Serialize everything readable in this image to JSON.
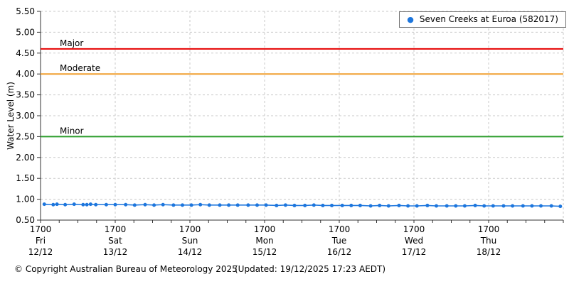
{
  "legend": {
    "label": "Seven Creeks at Euroa (582017)",
    "marker": "dot",
    "marker_color": "#1d76dd"
  },
  "footer": {
    "copyright": "© Copyright Australian Bureau of Meteorology 2025",
    "updated": "(Updated: 19/12/2025 17:23 AEDT)"
  },
  "colors": {
    "series": "#1d76dd",
    "minor_threshold": "#2e9e2e",
    "moderate_threshold": "#f0a030",
    "major_threshold": "#e60000",
    "grid": "#c9c9c9",
    "axis": "#333333",
    "text": "#000000"
  },
  "chart_data": {
    "type": "line",
    "title": "",
    "xlabel": "",
    "ylabel": "Water Level (m)",
    "ylim": [
      0.5,
      5.5
    ],
    "yticks": [
      0.5,
      1.0,
      1.5,
      2.0,
      2.5,
      3.0,
      3.5,
      4.0,
      4.5,
      5.0,
      5.5
    ],
    "grid": true,
    "legend_position": "top-right",
    "x_range_days": 7,
    "minor_ticks_per_day": 4,
    "xticks": [
      {
        "time": "1700",
        "day": "Fri",
        "date": "12/12"
      },
      {
        "time": "1700",
        "day": "Sat",
        "date": "13/12"
      },
      {
        "time": "1700",
        "day": "Sun",
        "date": "14/12"
      },
      {
        "time": "1700",
        "day": "Mon",
        "date": "15/12"
      },
      {
        "time": "1700",
        "day": "Tue",
        "date": "16/12"
      },
      {
        "time": "1700",
        "day": "Wed",
        "date": "17/12"
      },
      {
        "time": "1700",
        "day": "Thu",
        "date": "18/12"
      }
    ],
    "thresholds": [
      {
        "name": "Minor",
        "value": 2.5,
        "color": "#2e9e2e"
      },
      {
        "name": "Moderate",
        "value": 4.0,
        "color": "#f0a030"
      },
      {
        "name": "Major",
        "value": 4.6,
        "color": "#e60000"
      }
    ],
    "series": [
      {
        "name": "Seven Creeks at Euroa (582017)",
        "color": "#1d76dd",
        "marker": "circle",
        "x_days": [
          0.05,
          0.17,
          0.22,
          0.33,
          0.45,
          0.57,
          0.62,
          0.67,
          0.74,
          0.88,
          1.0,
          1.14,
          1.26,
          1.4,
          1.52,
          1.64,
          1.78,
          1.9,
          2.02,
          2.14,
          2.26,
          2.4,
          2.52,
          2.64,
          2.78,
          2.9,
          3.02,
          3.16,
          3.28,
          3.4,
          3.54,
          3.66,
          3.78,
          3.9,
          4.04,
          4.16,
          4.28,
          4.42,
          4.54,
          4.66,
          4.8,
          4.92,
          5.04,
          5.18,
          5.3,
          5.44,
          5.56,
          5.68,
          5.82,
          5.94,
          6.06,
          6.2,
          6.32,
          6.46,
          6.58,
          6.7,
          6.84,
          6.96
        ],
        "values": [
          0.88,
          0.87,
          0.88,
          0.87,
          0.88,
          0.87,
          0.87,
          0.88,
          0.87,
          0.87,
          0.87,
          0.87,
          0.86,
          0.87,
          0.86,
          0.87,
          0.86,
          0.86,
          0.86,
          0.87,
          0.86,
          0.86,
          0.86,
          0.86,
          0.86,
          0.86,
          0.86,
          0.85,
          0.86,
          0.85,
          0.85,
          0.86,
          0.85,
          0.85,
          0.85,
          0.85,
          0.85,
          0.84,
          0.85,
          0.84,
          0.85,
          0.84,
          0.84,
          0.85,
          0.84,
          0.84,
          0.84,
          0.84,
          0.85,
          0.84,
          0.84,
          0.84,
          0.84,
          0.84,
          0.84,
          0.84,
          0.84,
          0.83
        ]
      }
    ]
  }
}
